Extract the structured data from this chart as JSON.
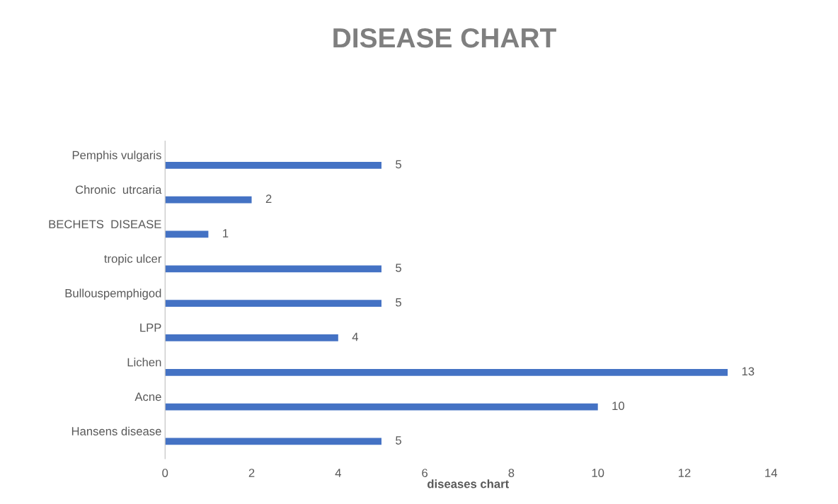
{
  "chart_data": {
    "type": "bar",
    "orientation": "horizontal",
    "title": "DISEASE CHART",
    "xlabel": "diseases chart",
    "categories": [
      "Pemphis vulgaris",
      "Chronic  utrcaria",
      "BECHETS  DISEASE",
      "tropic ulcer",
      "Bullouspemphigod",
      "LPP",
      "Lichen",
      "Acne",
      "Hansens disease"
    ],
    "values": [
      5,
      2,
      1,
      5,
      5,
      4,
      13,
      10,
      5
    ],
    "color": "#4472c4",
    "xlim": [
      0,
      14
    ],
    "xticks": [
      0,
      2,
      4,
      6,
      8,
      10,
      12,
      14
    ],
    "grid": false,
    "data_labels": true
  }
}
